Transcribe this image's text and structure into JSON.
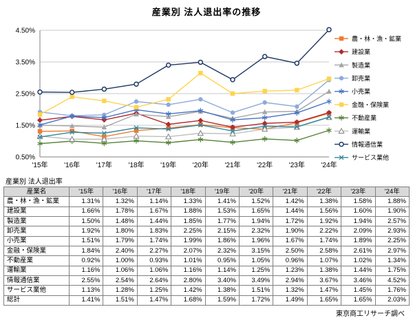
{
  "page": {
    "title": "産業別  法人退出率の推移",
    "source": "東京商工リサーチ調べ"
  },
  "chart_data": {
    "type": "line",
    "title": "産業別 法人退出率の推移",
    "x": [
      "'15年",
      "'16年",
      "'17年",
      "'18年",
      "'19年",
      "'20年",
      "'21年",
      "'22年",
      "'23年",
      "'24年"
    ],
    "ylim": [
      0.5,
      4.5
    ],
    "yticks": [
      {
        "value": 4.5,
        "label": "4.50%"
      },
      {
        "value": 3.5,
        "label": "3.50%"
      },
      {
        "value": 2.5,
        "label": "2.50%"
      },
      {
        "value": 1.5,
        "label": "1.50%"
      },
      {
        "value": 0.5,
        "label": "0.50%"
      }
    ],
    "grid": true,
    "legend_position": "right",
    "series": [
      {
        "name": "農・林・漁・鉱業",
        "color": "#ED7D31",
        "marker": "square",
        "values": [
          1.31,
          1.32,
          1.14,
          1.33,
          1.41,
          1.52,
          1.42,
          1.38,
          1.58,
          1.88
        ]
      },
      {
        "name": "建設業",
        "color": "#B02B2F",
        "marker": "diamond",
        "values": [
          1.66,
          1.78,
          1.67,
          1.88,
          1.53,
          1.65,
          1.44,
          1.56,
          1.6,
          1.9
        ]
      },
      {
        "name": "製造業",
        "color": "#A5A5A5",
        "marker": "triangle",
        "values": [
          1.5,
          1.48,
          1.44,
          1.85,
          1.77,
          1.94,
          1.72,
          1.92,
          1.94,
          2.57
        ]
      },
      {
        "name": "卸売業",
        "color": "#8FAADC",
        "marker": "circle",
        "values": [
          1.92,
          1.8,
          1.83,
          2.25,
          2.15,
          2.32,
          1.9,
          2.22,
          2.09,
          2.93
        ]
      },
      {
        "name": "小売業",
        "color": "#4472C4",
        "marker": "asterisk",
        "values": [
          1.51,
          1.79,
          1.74,
          1.99,
          1.86,
          1.96,
          1.67,
          1.74,
          1.89,
          2.25
        ]
      },
      {
        "name": "金融・保険業",
        "color": "#FFD34D",
        "marker": "square",
        "values": [
          1.84,
          2.4,
          2.27,
          2.07,
          2.32,
          3.15,
          2.5,
          2.58,
          2.61,
          2.97
        ]
      },
      {
        "name": "不動産業",
        "color": "#548235",
        "marker": "asterisk",
        "values": [
          0.92,
          1.0,
          0.93,
          1.01,
          0.95,
          1.05,
          0.96,
          1.07,
          1.02,
          1.34
        ]
      },
      {
        "name": "運輸業",
        "color": "#BFBFBF",
        "marker": "triangle-open",
        "values": [
          1.16,
          1.06,
          1.06,
          1.16,
          1.14,
          1.25,
          1.23,
          1.38,
          1.44,
          1.75
        ]
      },
      {
        "name": "情報通信業",
        "color": "#1F3864",
        "marker": "circle-open",
        "values": [
          2.55,
          2.54,
          2.64,
          2.8,
          3.4,
          3.49,
          2.94,
          3.67,
          3.46,
          4.52
        ]
      },
      {
        "name": "サービス業他",
        "color": "#31859C",
        "marker": "x",
        "values": [
          1.13,
          1.28,
          1.25,
          1.42,
          1.38,
          1.51,
          1.32,
          1.47,
          1.45,
          1.76
        ]
      }
    ]
  },
  "table": {
    "caption": "産業別  法人退出率",
    "columns": [
      "産業名",
      "'15年",
      "'16年",
      "'17年",
      "'18年",
      "'19年",
      "'20年",
      "'21年",
      "'22年",
      "'23年",
      "'24年"
    ],
    "rows": [
      {
        "label": "農・林・漁・鉱業",
        "values": [
          "1.31%",
          "1.32%",
          "1.14%",
          "1.33%",
          "1.41%",
          "1.52%",
          "1.42%",
          "1.38%",
          "1.58%",
          "1.88%"
        ]
      },
      {
        "label": "建設業",
        "values": [
          "1.66%",
          "1.78%",
          "1.67%",
          "1.88%",
          "1.53%",
          "1.65%",
          "1.44%",
          "1.56%",
          "1.60%",
          "1.90%"
        ]
      },
      {
        "label": "製造業",
        "values": [
          "1.50%",
          "1.48%",
          "1.44%",
          "1.85%",
          "1.77%",
          "1.94%",
          "1.72%",
          "1.92%",
          "1.94%",
          "2.57%"
        ]
      },
      {
        "label": "卸売業",
        "values": [
          "1.92%",
          "1.80%",
          "1.83%",
          "2.25%",
          "2.15%",
          "2.32%",
          "1.90%",
          "2.22%",
          "2.09%",
          "2.93%"
        ]
      },
      {
        "label": "小売業",
        "values": [
          "1.51%",
          "1.79%",
          "1.74%",
          "1.99%",
          "1.86%",
          "1.96%",
          "1.67%",
          "1.74%",
          "1.89%",
          "2.25%"
        ]
      },
      {
        "label": "金融・保険業",
        "values": [
          "1.84%",
          "2.40%",
          "2.27%",
          "2.07%",
          "2.32%",
          "3.15%",
          "2.50%",
          "2.58%",
          "2.61%",
          "2.97%"
        ]
      },
      {
        "label": "不動産業",
        "values": [
          "0.92%",
          "1.00%",
          "0.93%",
          "1.01%",
          "0.95%",
          "1.05%",
          "0.96%",
          "1.07%",
          "1.02%",
          "1.34%"
        ]
      },
      {
        "label": "運輸業",
        "values": [
          "1.16%",
          "1.06%",
          "1.06%",
          "1.16%",
          "1.14%",
          "1.25%",
          "1.23%",
          "1.38%",
          "1.44%",
          "1.75%"
        ]
      },
      {
        "label": "情報通信業",
        "values": [
          "2.55%",
          "2.54%",
          "2.64%",
          "2.80%",
          "3.40%",
          "3.49%",
          "2.94%",
          "3.67%",
          "3.46%",
          "4.52%"
        ]
      },
      {
        "label": "サービス業他",
        "values": [
          "1.13%",
          "1.28%",
          "1.25%",
          "1.42%",
          "1.38%",
          "1.51%",
          "1.32%",
          "1.47%",
          "1.45%",
          "1.76%"
        ]
      },
      {
        "label": "総計",
        "values": [
          "1.41%",
          "1.51%",
          "1.47%",
          "1.68%",
          "1.59%",
          "1.72%",
          "1.49%",
          "1.65%",
          "1.65%",
          "2.03%"
        ]
      }
    ]
  }
}
